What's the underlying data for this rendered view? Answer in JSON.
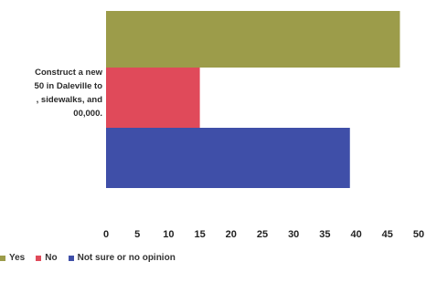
{
  "chart_data": {
    "type": "bar",
    "orientation": "horizontal",
    "categories": [
      "Construct a new\n50 in Daleville to\n, sidewalks, and\n00,000."
    ],
    "series": [
      {
        "name": "Yes",
        "values": [
          47
        ],
        "color": "#9c9c4a"
      },
      {
        "name": "No",
        "values": [
          15
        ],
        "color": "#e04a5a"
      },
      {
        "name": "Not sure or no opinion",
        "values": [
          39
        ],
        "color": "#3f4fa8"
      }
    ],
    "xlim": [
      0,
      50
    ],
    "xticks": [
      "0",
      "5",
      "10",
      "15",
      "20",
      "25",
      "30",
      "35",
      "40",
      "45",
      "50"
    ],
    "title": "",
    "xlabel": "",
    "ylabel": "",
    "grid": false,
    "legend": "bottom-left"
  }
}
